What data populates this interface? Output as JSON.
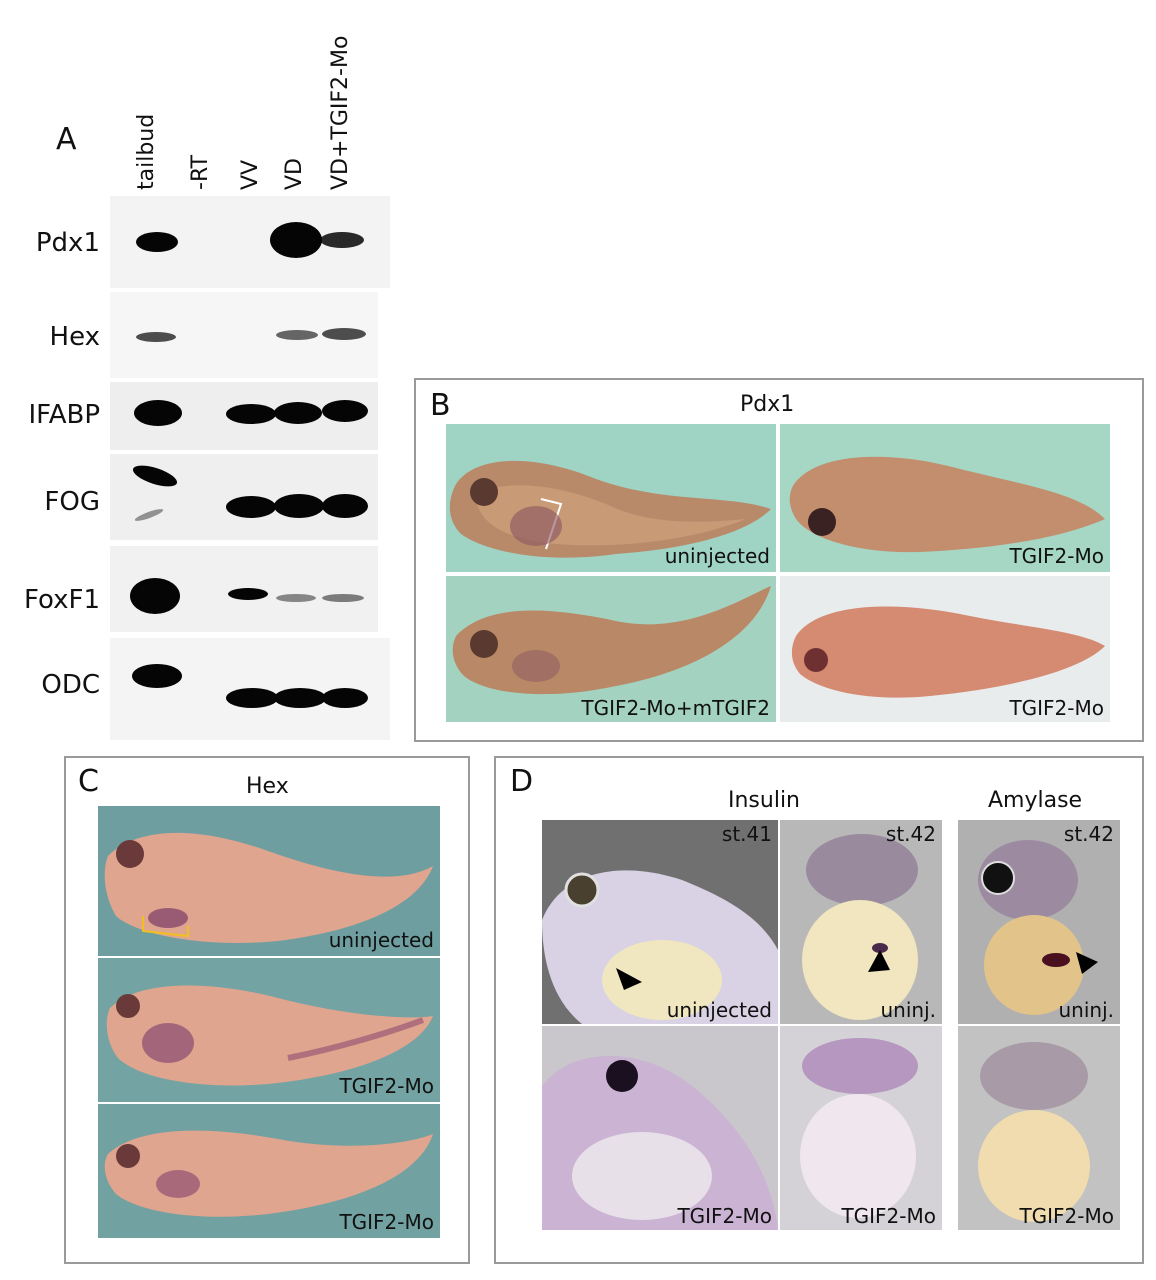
{
  "panelA": {
    "letter": "A",
    "lanes": [
      "tailbud",
      "-RT",
      "VV",
      "VD",
      "VD+TGIF2-Mo"
    ],
    "genes": [
      "Pdx1",
      "Hex",
      "IFABP",
      "FOG",
      "FoxF1",
      "ODC"
    ]
  },
  "panelB": {
    "letter": "B",
    "title": "Pdx1",
    "labels": [
      "uninjected",
      "TGIF2-Mo",
      "TGIF2-Mo+mTGIF2",
      "TGIF2-Mo"
    ]
  },
  "panelC": {
    "letter": "C",
    "title": "Hex",
    "labels": [
      "uninjected",
      "TGIF2-Mo",
      "TGIF2-Mo"
    ]
  },
  "panelD": {
    "letter": "D",
    "title_insulin": "Insulin",
    "title_amylase": "Amylase",
    "stages": [
      "st.41",
      "st.42",
      "st.42"
    ],
    "top_labels": [
      "uninjected",
      "uninj.",
      "uninj."
    ],
    "bottom_labels": [
      "TGIF2-Mo",
      "TGIF2-Mo",
      "TGIF2-Mo"
    ]
  }
}
